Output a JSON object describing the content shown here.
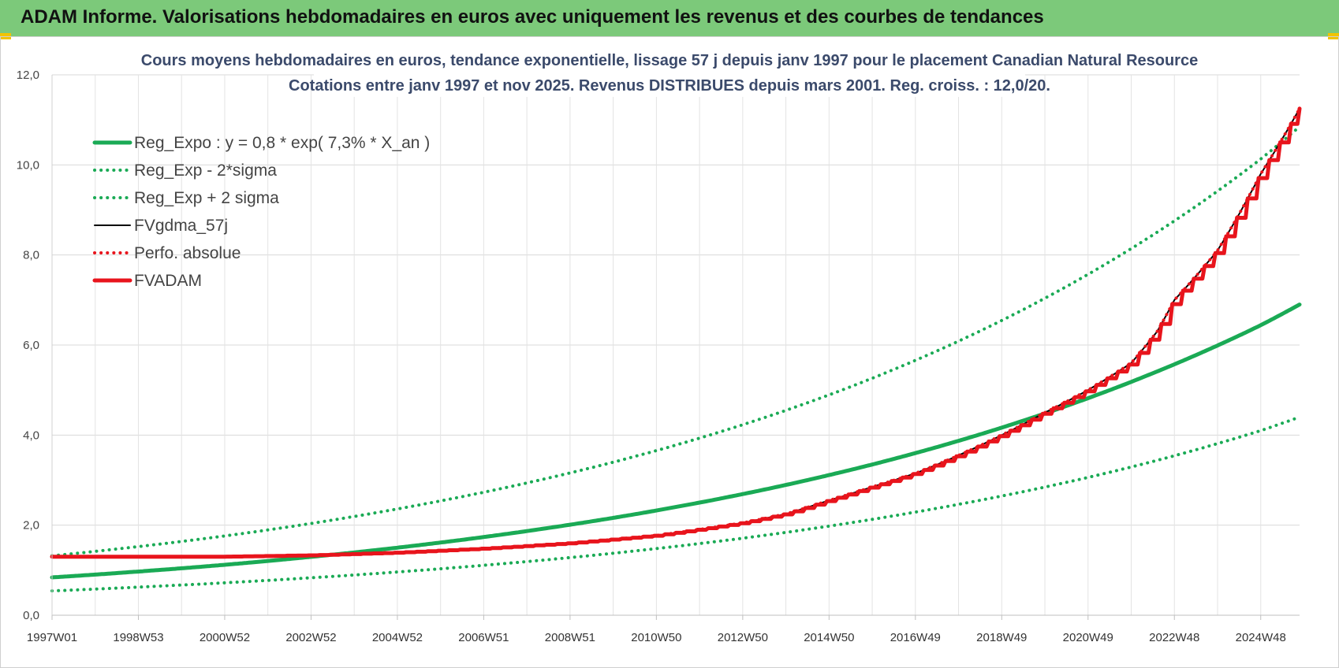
{
  "header": {
    "title": "ADAM Informe. Valorisations hebdomadaires en euros avec uniquement les revenus et des courbes de tendances"
  },
  "chart_data": {
    "type": "line",
    "title": [
      "Cours moyens hebdomadaires en euros, tendance exponentielle, lissage 57 j depuis janv 1997  pour le placement Canadian Natural Resource",
      "Cotations entre janv 1997 et nov 2025. Revenus DISTRIBUES depuis mars 2001.  Reg. croiss. : 12,0/20."
    ],
    "xlabel": "",
    "ylabel": "",
    "ylim": [
      0,
      12
    ],
    "xlim": [
      1997.0,
      2025.9
    ],
    "y_ticks": [
      "0,0",
      "2,0",
      "4,0",
      "6,0",
      "8,0",
      "10,0",
      "12,0"
    ],
    "x_ticks": [
      {
        "label": "1997W01",
        "x": 1997.0
      },
      {
        "label": "1998W53",
        "x": 1999.0
      },
      {
        "label": "2000W52",
        "x": 2001.0
      },
      {
        "label": "2002W52",
        "x": 2003.0
      },
      {
        "label": "2004W52",
        "x": 2005.0
      },
      {
        "label": "2006W51",
        "x": 2007.0
      },
      {
        "label": "2008W51",
        "x": 2009.0
      },
      {
        "label": "2010W50",
        "x": 2011.0
      },
      {
        "label": "2012W50",
        "x": 2013.0
      },
      {
        "label": "2014W50",
        "x": 2015.0
      },
      {
        "label": "2016W49",
        "x": 2017.0
      },
      {
        "label": "2018W49",
        "x": 2019.0
      },
      {
        "label": "2020W49",
        "x": 2021.0
      },
      {
        "label": "2022W48",
        "x": 2023.0
      },
      {
        "label": "2024W48",
        "x": 2025.0
      }
    ],
    "series": [
      {
        "name": "Reg_Expo : y = 0,8 * exp( 7,3% *  X_an )",
        "style": "solid-thick",
        "color": "#1aaa55",
        "x": [
          1997.0,
          2001.0,
          2005.0,
          2009.0,
          2013.0,
          2017.0,
          2021.0,
          2025.0,
          2025.9
        ],
        "y": [
          0.84,
          1.12,
          1.5,
          2.01,
          2.69,
          3.6,
          4.82,
          6.44,
          6.9
        ]
      },
      {
        "name": "Reg_Exp - 2*sigma",
        "style": "dotted",
        "color": "#1aaa55",
        "x": [
          1997.0,
          2001.0,
          2005.0,
          2009.0,
          2013.0,
          2017.0,
          2021.0,
          2025.0,
          2025.9
        ],
        "y": [
          0.54,
          0.72,
          0.96,
          1.28,
          1.71,
          2.29,
          3.06,
          4.1,
          4.4
        ]
      },
      {
        "name": "Reg_Exp + 2 sigma",
        "style": "dotted",
        "color": "#1aaa55",
        "x": [
          1997.0,
          2001.0,
          2005.0,
          2009.0,
          2013.0,
          2017.0,
          2021.0,
          2025.0,
          2025.9
        ],
        "y": [
          1.32,
          1.76,
          2.36,
          3.16,
          4.23,
          5.66,
          7.57,
          10.13,
          10.85
        ]
      },
      {
        "name": "FVgdma_57j",
        "style": "solid-thin",
        "color": "#000000",
        "x": [
          1997.0,
          2001.0,
          2003.0,
          2005.0,
          2007.0,
          2009.0,
          2011.0,
          2013.0,
          2014.0,
          2015.0,
          2016.0,
          2017.0,
          2018.0,
          2019.0,
          2020.0,
          2021.0,
          2022.0,
          2022.6,
          2023.0,
          2024.0,
          2025.0,
          2025.9
        ],
        "y": [
          1.3,
          1.3,
          1.33,
          1.39,
          1.48,
          1.6,
          1.77,
          2.05,
          2.25,
          2.55,
          2.85,
          3.15,
          3.55,
          4.0,
          4.5,
          5.0,
          5.6,
          6.3,
          7.0,
          8.1,
          9.8,
          11.25
        ]
      },
      {
        "name": "Perfo. absolue",
        "style": "dotted",
        "color": "#e8141c",
        "x": [
          1997.0,
          2001.0,
          2003.0,
          2005.0,
          2007.0,
          2009.0,
          2011.0,
          2013.0,
          2014.0,
          2015.0,
          2016.0,
          2017.0,
          2018.0,
          2019.0,
          2020.0,
          2021.0,
          2022.0,
          2022.6,
          2023.0,
          2024.0,
          2025.0,
          2025.9
        ],
        "y": [
          1.3,
          1.3,
          1.33,
          1.39,
          1.48,
          1.6,
          1.77,
          2.05,
          2.25,
          2.55,
          2.85,
          3.15,
          3.55,
          4.0,
          4.5,
          5.0,
          5.6,
          6.3,
          7.0,
          8.1,
          9.8,
          11.25
        ]
      },
      {
        "name": "FVADAM",
        "style": "solid-thick",
        "color": "#e8141c",
        "x": [
          1997.0,
          2001.0,
          2003.0,
          2005.0,
          2007.0,
          2009.0,
          2011.0,
          2013.0,
          2014.0,
          2015.0,
          2016.0,
          2017.0,
          2018.0,
          2019.0,
          2020.0,
          2021.0,
          2022.0,
          2022.6,
          2023.0,
          2024.0,
          2025.0,
          2025.9
        ],
        "y": [
          1.3,
          1.3,
          1.33,
          1.39,
          1.48,
          1.6,
          1.77,
          2.05,
          2.25,
          2.55,
          2.85,
          3.15,
          3.55,
          4.0,
          4.5,
          5.0,
          5.6,
          6.3,
          7.0,
          8.1,
          9.8,
          11.25
        ]
      }
    ],
    "grid": true,
    "legend_position": "top-left"
  }
}
